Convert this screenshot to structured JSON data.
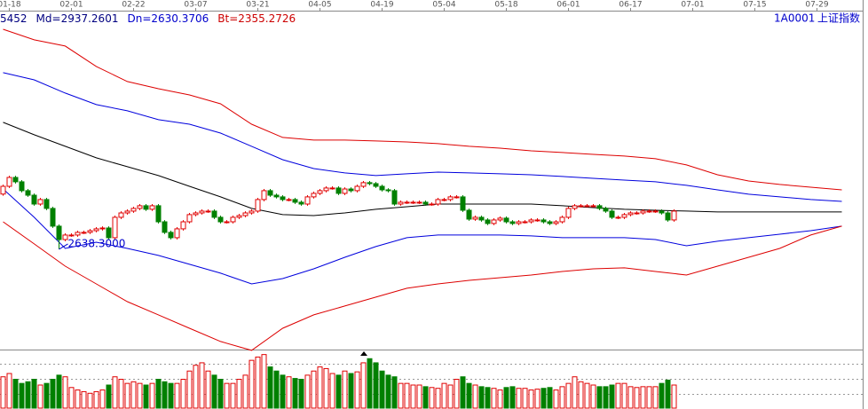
{
  "chart_data": {
    "type": "candlestick",
    "header": [
      {
        "text": "5452",
        "color": "#000080"
      },
      {
        "text": "Md=2937.2601",
        "color": "#000080"
      },
      {
        "text": "Dn=2630.3706",
        "color": "#0000cc"
      },
      {
        "text": "Bt=2355.2726",
        "color": "#cc0000"
      }
    ],
    "symbol": "1A0001",
    "name": "上证指数",
    "xlim": [
      -0.5,
      138.5
    ],
    "xticks": [
      {
        "value": 1,
        "label": "01-18"
      },
      {
        "value": 11,
        "label": "02-01"
      },
      {
        "value": 21,
        "label": "02-22"
      },
      {
        "value": 31,
        "label": "03-07"
      },
      {
        "value": 41,
        "label": "03-21"
      },
      {
        "value": 51,
        "label": "04-05"
      },
      {
        "value": 61,
        "label": "04-19"
      },
      {
        "value": 71,
        "label": "05-04"
      },
      {
        "value": 81,
        "label": "05-18"
      },
      {
        "value": 91,
        "label": "06-01"
      },
      {
        "value": 101,
        "label": "06-17"
      },
      {
        "value": 111,
        "label": "07-01"
      },
      {
        "value": 121,
        "label": "07-15"
      },
      {
        "value": 131,
        "label": "07-29"
      }
    ],
    "ylim": [
      1888,
      4345
    ],
    "up_color": "#e00000",
    "down_color": "#008000",
    "open": [
      3030,
      3085,
      3148,
      3117,
      3054,
      3022,
      2959,
      2991,
      2928,
      2802,
      2707,
      2739,
      2739,
      2758,
      2758,
      2770,
      2783,
      2789,
      2720,
      2865,
      2896,
      2909,
      2928,
      2947,
      2922,
      2947,
      2833,
      2758,
      2720,
      2783,
      2833,
      2884,
      2896,
      2909,
      2909,
      2865,
      2833,
      2833,
      2865,
      2877,
      2896,
      2909,
      2991,
      3054,
      3022,
      3010,
      2991,
      2991,
      2972,
      2959,
      3010,
      3035,
      3054,
      3073,
      3073,
      3035,
      3066,
      3054,
      3085,
      3111,
      3104,
      3085,
      3060,
      3054,
      2959,
      2972,
      2972,
      2972,
      2972,
      2959,
      2959,
      2991,
      2991,
      3010,
      3010,
      2915,
      2852,
      2865,
      2846,
      2821,
      2846,
      2859,
      2833,
      2821,
      2833,
      2833,
      2846,
      2846,
      2833,
      2821,
      2833,
      2865,
      2928,
      2947,
      2947,
      2947,
      2947,
      2928,
      2909,
      2865,
      2865,
      2884,
      2896,
      2896,
      2909,
      2909,
      2909,
      2896,
      2846
    ],
    "close": [
      3085,
      3148,
      3117,
      3054,
      3022,
      2959,
      2991,
      2928,
      2802,
      2707,
      2739,
      2739,
      2758,
      2758,
      2770,
      2783,
      2789,
      2720,
      2865,
      2896,
      2909,
      2928,
      2947,
      2922,
      2947,
      2833,
      2758,
      2720,
      2783,
      2833,
      2884,
      2896,
      2909,
      2909,
      2865,
      2833,
      2833,
      2865,
      2877,
      2896,
      2909,
      2991,
      3054,
      3022,
      3010,
      2991,
      2991,
      2972,
      2959,
      3010,
      3035,
      3054,
      3073,
      3073,
      3035,
      3066,
      3054,
      3085,
      3111,
      3104,
      3085,
      3060,
      3054,
      2959,
      2972,
      2972,
      2972,
      2972,
      2959,
      2959,
      2991,
      2991,
      3010,
      3010,
      2915,
      2852,
      2865,
      2846,
      2821,
      2846,
      2859,
      2833,
      2821,
      2833,
      2833,
      2846,
      2846,
      2833,
      2821,
      2833,
      2865,
      2928,
      2947,
      2947,
      2947,
      2947,
      2928,
      2909,
      2865,
      2865,
      2884,
      2896,
      2896,
      2909,
      2909,
      2909,
      2896,
      2846,
      2909
    ],
    "high": [
      3097,
      3160,
      3160,
      3129,
      3066,
      3034,
      3003,
      3003,
      2940,
      2814,
      2751,
      2751,
      2770,
      2770,
      2782,
      2795,
      2801,
      2801,
      2877,
      2908,
      2921,
      2940,
      2959,
      2959,
      2959,
      2959,
      2845,
      2770,
      2795,
      2845,
      2896,
      2908,
      2921,
      2921,
      2921,
      2877,
      2845,
      2877,
      2889,
      2908,
      2921,
      3003,
      3066,
      3066,
      3034,
      3022,
      3003,
      3003,
      2984,
      3022,
      3047,
      3066,
      3085,
      3085,
      3085,
      3078,
      3078,
      3097,
      3123,
      3123,
      3116,
      3097,
      3072,
      3066,
      2984,
      2984,
      2984,
      2984,
      2984,
      2971,
      3003,
      3003,
      3022,
      3022,
      3022,
      2927,
      2877,
      2877,
      2858,
      2858,
      2871,
      2871,
      2845,
      2845,
      2845,
      2858,
      2858,
      2858,
      2845,
      2845,
      2877,
      2940,
      2959,
      2959,
      2959,
      2959,
      2959,
      2940,
      2921,
      2877,
      2896,
      2908,
      2908,
      2921,
      2921,
      2921,
      2921,
      2908,
      2921
    ],
    "low": [
      3018,
      3073,
      3105,
      3042,
      3010,
      2947,
      2947,
      2916,
      2790,
      2638.3,
      2695,
      2727,
      2727,
      2746,
      2746,
      2758,
      2771,
      2708,
      2708,
      2853,
      2884,
      2897,
      2916,
      2910,
      2910,
      2821,
      2746,
      2708,
      2708,
      2771,
      2821,
      2872,
      2884,
      2897,
      2853,
      2821,
      2821,
      2821,
      2853,
      2865,
      2884,
      2897,
      2979,
      3010,
      2998,
      2979,
      2979,
      2960,
      2947,
      2947,
      2998,
      3023,
      3042,
      3061,
      3023,
      3023,
      3042,
      3042,
      3073,
      3092,
      3073,
      3048,
      3042,
      2947,
      2947,
      2960,
      2960,
      2960,
      2947,
      2947,
      2947,
      2979,
      2979,
      2998,
      2903,
      2840,
      2840,
      2834,
      2809,
      2809,
      2834,
      2821,
      2809,
      2809,
      2821,
      2821,
      2834,
      2821,
      2809,
      2809,
      2821,
      2853,
      2916,
      2935,
      2935,
      2935,
      2916,
      2897,
      2853,
      2853,
      2853,
      2872,
      2884,
      2884,
      2897,
      2897,
      2884,
      2834,
      2834
    ],
    "annotations": [
      {
        "text": "2638.3000",
        "x": 9,
        "y": 2638.3,
        "color": "#0000cc"
      }
    ],
    "band_x": [
      0,
      5,
      10,
      15,
      20,
      25,
      30,
      35,
      40,
      45,
      50,
      55,
      60,
      65,
      70,
      75,
      80,
      85,
      90,
      95,
      100,
      105,
      110,
      115,
      120,
      125,
      130,
      135
    ],
    "bands": [
      {
        "color": "#dd0000",
        "values": [
          4200,
          4125,
          4081,
          3936,
          3829,
          3778,
          3734,
          3671,
          3526,
          3432,
          3413,
          3413,
          3407,
          3400,
          3388,
          3369,
          3356,
          3337,
          3325,
          3312,
          3300,
          3281,
          3237,
          3167,
          3123,
          3098,
          3079,
          3060
        ]
      },
      {
        "color": "#0000dd",
        "values": [
          3892,
          3841,
          3747,
          3665,
          3621,
          3558,
          3526,
          3463,
          3369,
          3274,
          3211,
          3180,
          3161,
          3174,
          3186,
          3180,
          3174,
          3167,
          3155,
          3142,
          3129,
          3117,
          3092,
          3060,
          3029,
          3010,
          2991,
          2978
        ]
      },
      {
        "color": "#000000",
        "values": [
          3539,
          3451,
          3369,
          3287,
          3224,
          3161,
          3085,
          3010,
          2928,
          2884,
          2877,
          2896,
          2922,
          2940,
          2959,
          2959,
          2959,
          2959,
          2947,
          2934,
          2922,
          2915,
          2909,
          2903,
          2903,
          2903,
          2903,
          2903
        ]
      },
      {
        "color": "#0000dd",
        "values": [
          3066,
          2865,
          2644,
          2688,
          2644,
          2594,
          2531,
          2468,
          2392,
          2430,
          2499,
          2581,
          2657,
          2720,
          2739,
          2739,
          2739,
          2733,
          2720,
          2720,
          2720,
          2707,
          2663,
          2695,
          2720,
          2745,
          2770,
          2802
        ]
      },
      {
        "color": "#dd0000",
        "values": [
          2833,
          2676,
          2518,
          2392,
          2266,
          2172,
          2077,
          1983,
          1920,
          2077,
          2172,
          2235,
          2298,
          2361,
          2392,
          2417,
          2436,
          2455,
          2480,
          2499,
          2506,
          2480,
          2455,
          2518,
          2581,
          2644,
          2739,
          2802
        ]
      }
    ],
    "volume": {
      "ylim": [
        0,
        70
      ],
      "values": [
        38,
        42,
        35,
        30,
        32,
        35,
        28,
        30,
        35,
        40,
        38,
        25,
        22,
        20,
        18,
        20,
        22,
        28,
        38,
        35,
        30,
        32,
        30,
        28,
        30,
        35,
        32,
        30,
        30,
        35,
        45,
        52,
        55,
        45,
        40,
        35,
        30,
        30,
        35,
        40,
        58,
        62,
        65,
        50,
        45,
        40,
        38,
        36,
        35,
        40,
        45,
        50,
        48,
        42,
        40,
        45,
        42,
        44,
        55,
        60,
        55,
        45,
        40,
        38,
        30,
        30,
        28,
        28,
        26,
        25,
        24,
        30,
        28,
        35,
        38,
        30,
        28,
        26,
        25,
        24,
        22,
        25,
        26,
        24,
        24,
        22,
        23,
        24,
        25,
        22,
        26,
        30,
        38,
        32,
        30,
        28,
        26,
        26,
        28,
        30,
        30,
        26,
        25,
        26,
        26,
        26,
        30,
        34,
        28
      ]
    }
  }
}
